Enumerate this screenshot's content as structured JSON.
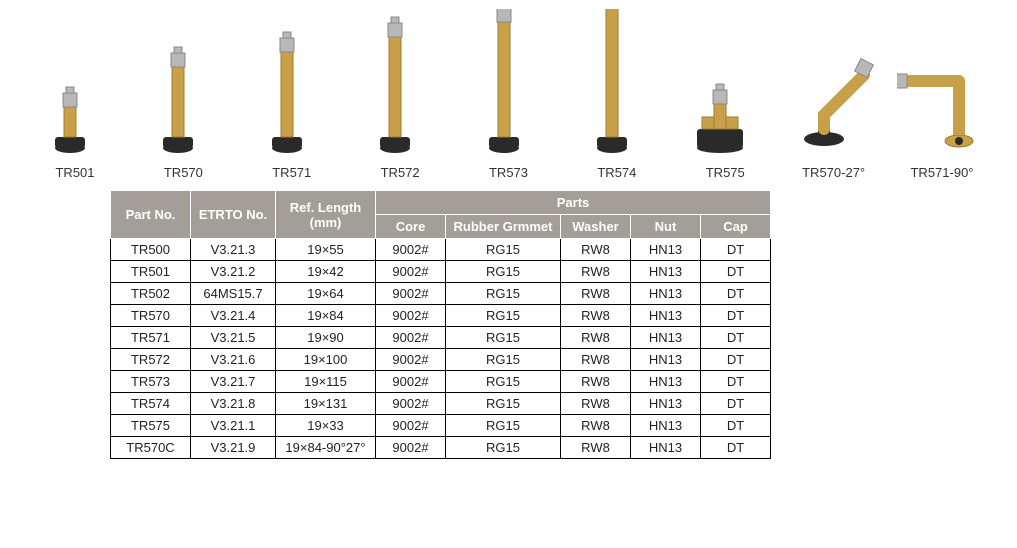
{
  "colors": {
    "brass": "#c9a04a",
    "brass_dark": "#a37a2a",
    "rubber": "#2a2a2a",
    "steel": "#b8b8b8",
    "header_bg": "#a39e98",
    "header_fg": "#ffffff",
    "cell_border": "#000000",
    "text": "#333333"
  },
  "products": [
    {
      "label": "TR501",
      "kind": "short_stem",
      "stem_h": 30
    },
    {
      "label": "TR570",
      "kind": "stem",
      "stem_h": 70
    },
    {
      "label": "TR571",
      "kind": "stem",
      "stem_h": 85
    },
    {
      "label": "TR572",
      "kind": "stem",
      "stem_h": 100
    },
    {
      "label": "TR573",
      "kind": "stem",
      "stem_h": 115
    },
    {
      "label": "TR574",
      "kind": "stem",
      "stem_h": 130
    },
    {
      "label": "TR575",
      "kind": "wide_base",
      "stem_h": 25
    },
    {
      "label": "TR570-27°",
      "kind": "bent27",
      "stem_h": 60
    },
    {
      "label": "TR571-90°",
      "kind": "bent90",
      "stem_h": 55
    }
  ],
  "table": {
    "header_row1": {
      "partno": "Part No.",
      "etrto": "ETRTO No.",
      "reflen": "Ref. Length (mm)",
      "parts": "Parts"
    },
    "header_row2": {
      "core": "Core",
      "rubber": "Rubber Grmmet",
      "washer": "Washer",
      "nut": "Nut",
      "cap": "Cap"
    },
    "rows": [
      [
        "TR500",
        "V3.21.3",
        "19×55",
        "9002#",
        "RG15",
        "RW8",
        "HN13",
        "DT"
      ],
      [
        "TR501",
        "V3.21.2",
        "19×42",
        "9002#",
        "RG15",
        "RW8",
        "HN13",
        "DT"
      ],
      [
        "TR502",
        "64MS15.7",
        "19×64",
        "9002#",
        "RG15",
        "RW8",
        "HN13",
        "DT"
      ],
      [
        "TR570",
        "V3.21.4",
        "19×84",
        "9002#",
        "RG15",
        "RW8",
        "HN13",
        "DT"
      ],
      [
        "TR571",
        "V3.21.5",
        "19×90",
        "9002#",
        "RG15",
        "RW8",
        "HN13",
        "DT"
      ],
      [
        "TR572",
        "V3.21.6",
        "19×100",
        "9002#",
        "RG15",
        "RW8",
        "HN13",
        "DT"
      ],
      [
        "TR573",
        "V3.21.7",
        "19×115",
        "9002#",
        "RG15",
        "RW8",
        "HN13",
        "DT"
      ],
      [
        "TR574",
        "V3.21.8",
        "19×131",
        "9002#",
        "RG15",
        "RW8",
        "HN13",
        "DT"
      ],
      [
        "TR575",
        "V3.21.1",
        "19×33",
        "9002#",
        "RG15",
        "RW8",
        "HN13",
        "DT"
      ],
      [
        "TR570C",
        "V3.21.9",
        "19×84-90°27°",
        "9002#",
        "RG15",
        "RW8",
        "HN13",
        "DT"
      ]
    ]
  }
}
